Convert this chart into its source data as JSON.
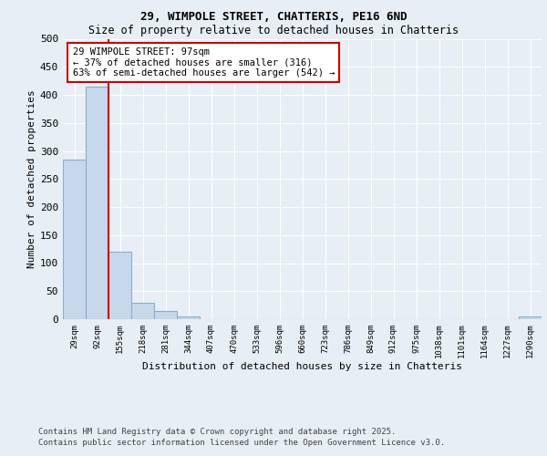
{
  "title1": "29, WIMPOLE STREET, CHATTERIS, PE16 6ND",
  "title2": "Size of property relative to detached houses in Chatteris",
  "xlabel": "Distribution of detached houses by size in Chatteris",
  "ylabel": "Number of detached properties",
  "categories": [
    "29sqm",
    "92sqm",
    "155sqm",
    "218sqm",
    "281sqm",
    "344sqm",
    "407sqm",
    "470sqm",
    "533sqm",
    "596sqm",
    "660sqm",
    "723sqm",
    "786sqm",
    "849sqm",
    "912sqm",
    "975sqm",
    "1038sqm",
    "1101sqm",
    "1164sqm",
    "1227sqm",
    "1290sqm"
  ],
  "values": [
    285,
    415,
    120,
    30,
    15,
    5,
    0,
    0,
    0,
    0,
    0,
    0,
    0,
    0,
    0,
    0,
    0,
    0,
    0,
    0,
    5
  ],
  "bar_color": "#c8d8eb",
  "bar_edge_color": "#8aafc8",
  "vline_color": "#cc0000",
  "vline_x": 1.5,
  "annotation_text": "29 WIMPOLE STREET: 97sqm\n← 37% of detached houses are smaller (316)\n63% of semi-detached houses are larger (542) →",
  "annotation_box_color": "#ffffff",
  "annotation_box_edge": "#cc0000",
  "ylim": [
    0,
    500
  ],
  "yticks": [
    0,
    50,
    100,
    150,
    200,
    250,
    300,
    350,
    400,
    450,
    500
  ],
  "footer1": "Contains HM Land Registry data © Crown copyright and database right 2025.",
  "footer2": "Contains public sector information licensed under the Open Government Licence v3.0.",
  "background_color": "#e8eef5",
  "plot_bg_color": "#e8eef5",
  "grid_color": "#ffffff",
  "title_fontsize": 9,
  "subtitle_fontsize": 8.5
}
